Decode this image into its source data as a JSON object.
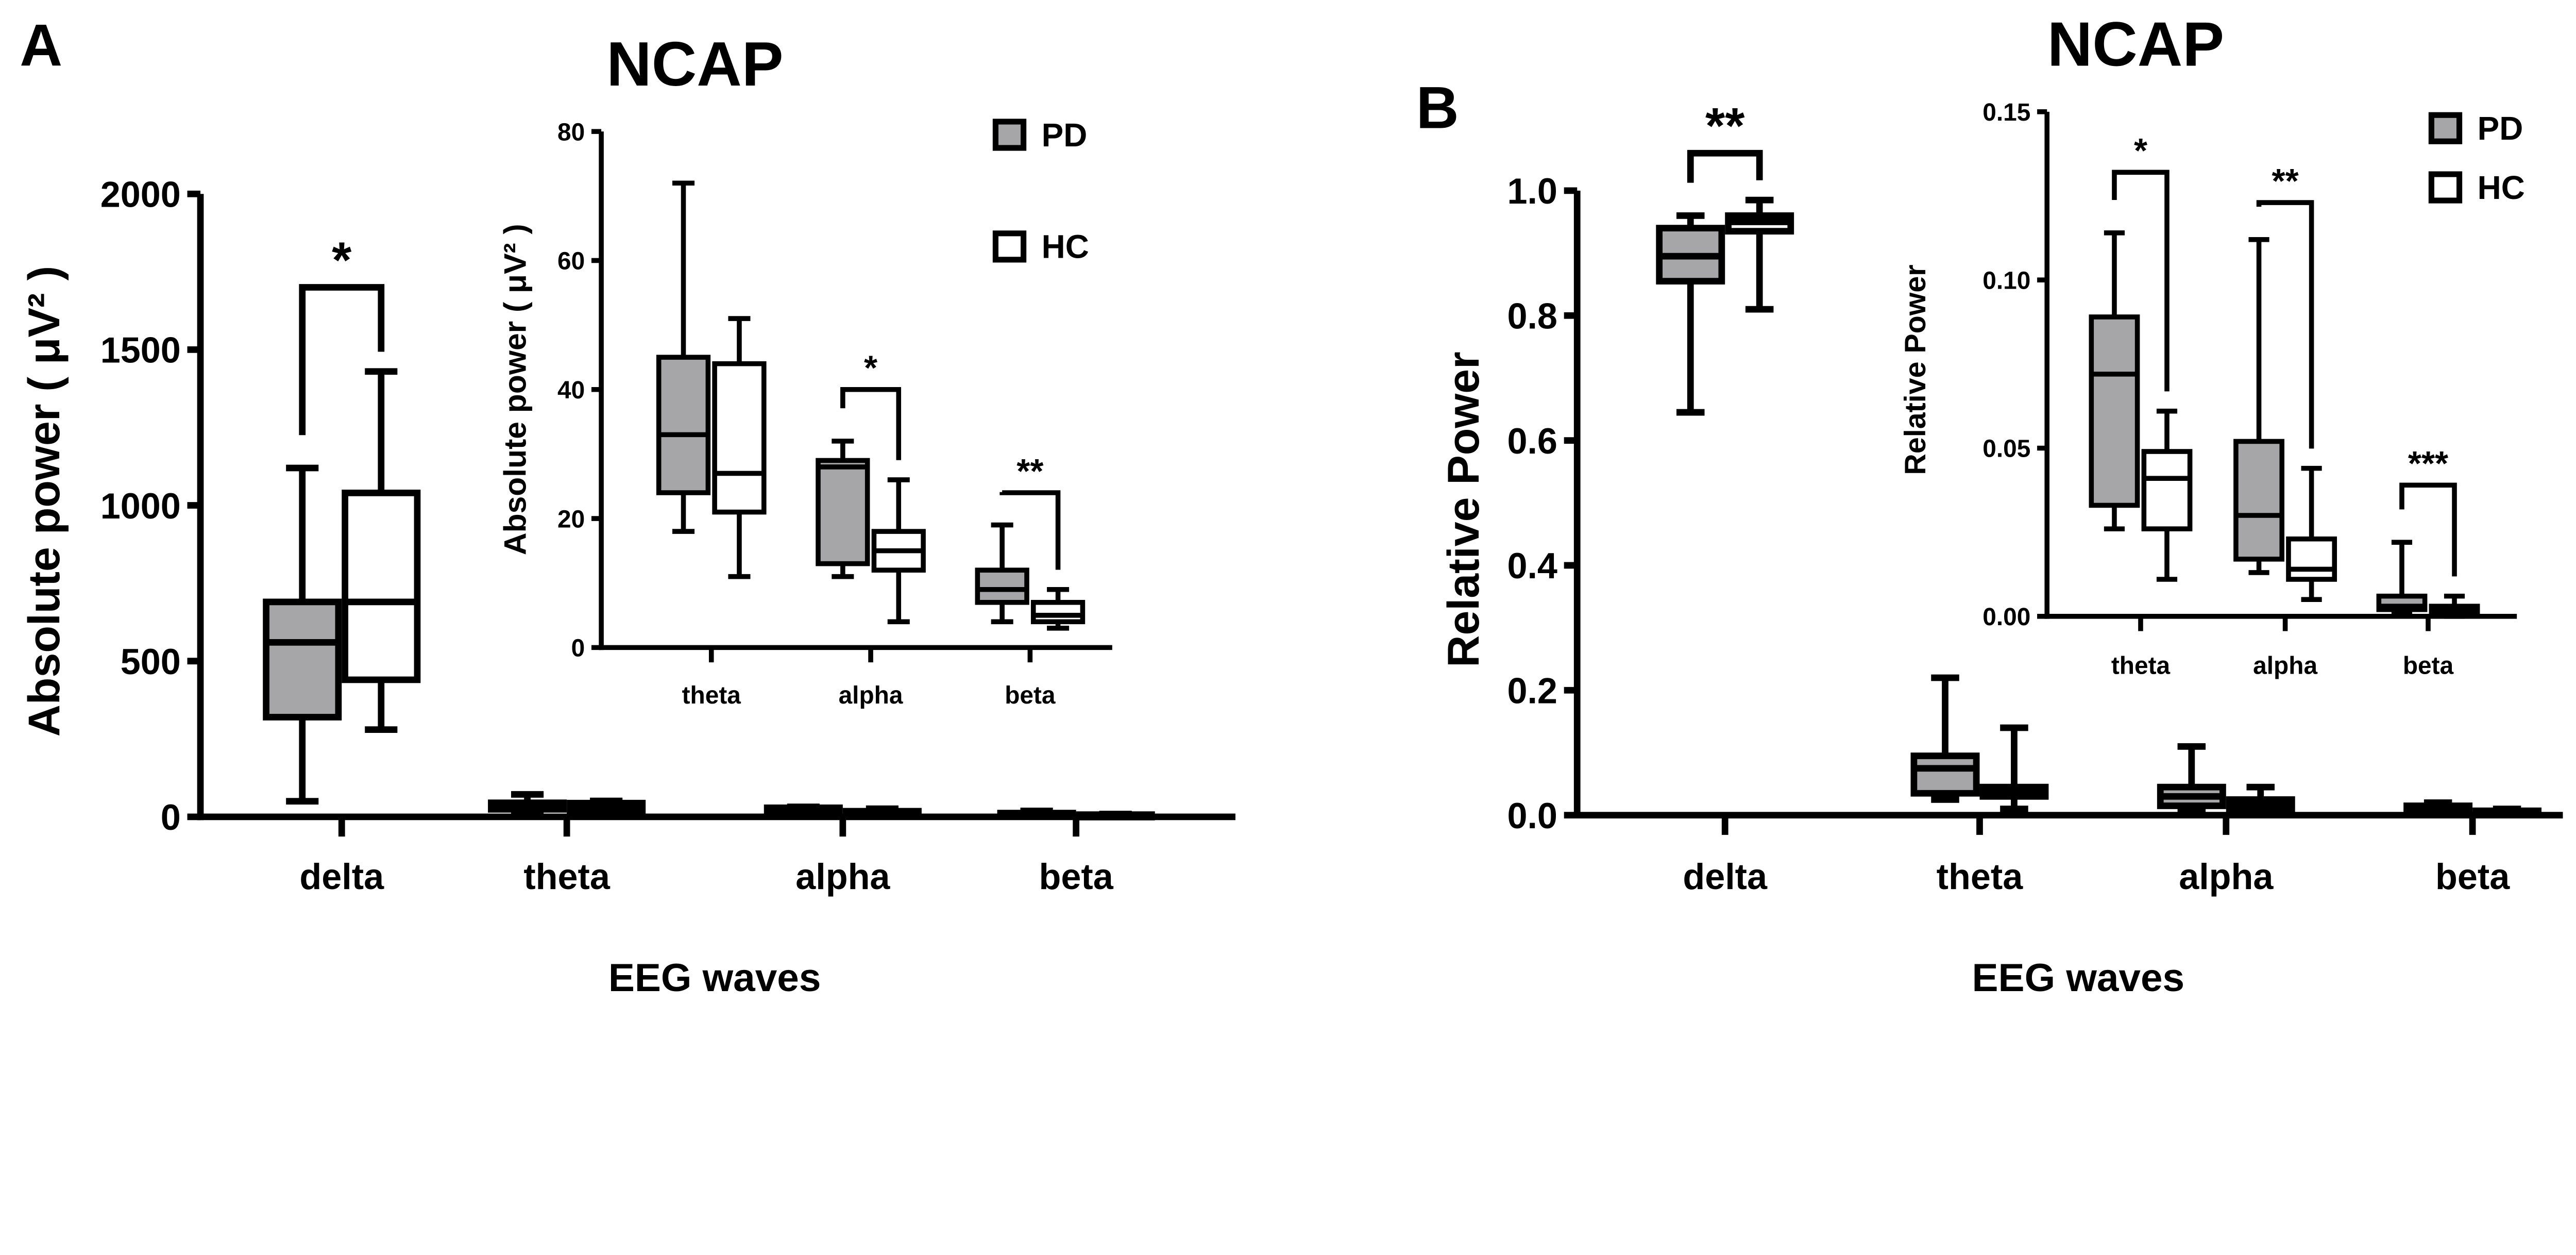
{
  "colors": {
    "pd_fill": "#a6a6a8",
    "hc_fill": "#ffffff",
    "stroke": "#000000"
  },
  "legend": [
    {
      "name": "PD",
      "color": "#a6a6a8"
    },
    {
      "name": "HC",
      "color": "#ffffff"
    }
  ],
  "chart_data": [
    {
      "id": "A-main",
      "panel_letter": "A",
      "title": "NCAP",
      "type": "box",
      "xlabel": "EEG waves",
      "ylabel": "Absolute power ( μV² )",
      "ylim": [
        0,
        2000
      ],
      "yticks": [
        0,
        500,
        1000,
        1500,
        2000
      ],
      "categories": [
        "delta",
        "theta",
        "alpha",
        "beta"
      ],
      "series": [
        {
          "name": "PD",
          "boxes": [
            [
              50,
              320,
              560,
              690,
              1120
            ],
            [
              18,
              24,
              33,
              45,
              72
            ],
            [
              11,
              13,
              28,
              29,
              32
            ],
            [
              4,
              7,
              9,
              12,
              19
            ]
          ]
        },
        {
          "name": "HC",
          "boxes": [
            [
              280,
              440,
              690,
              1040,
              1430
            ],
            [
              11,
              21,
              27,
              44,
              51
            ],
            [
              4,
              12,
              15,
              18,
              26
            ],
            [
              3,
              4,
              5,
              7,
              9
            ]
          ]
        }
      ],
      "significance": [
        {
          "category": "delta",
          "y": 1700,
          "label": "*"
        }
      ]
    },
    {
      "id": "A-inset",
      "type": "box",
      "ylabel": "Absolute power ( μV² )",
      "ylim": [
        0,
        80
      ],
      "yticks": [
        0,
        20,
        40,
        60,
        80
      ],
      "categories": [
        "theta",
        "alpha",
        "beta"
      ],
      "series": [
        {
          "name": "PD",
          "boxes": [
            [
              18,
              24,
              33,
              45,
              72
            ],
            [
              11,
              13,
              28,
              29,
              32
            ],
            [
              4,
              7,
              9,
              12,
              19
            ]
          ]
        },
        {
          "name": "HC",
          "boxes": [
            [
              11,
              21,
              27,
              44,
              51
            ],
            [
              4,
              12,
              15,
              18,
              26
            ],
            [
              3,
              4,
              5,
              7,
              9
            ]
          ]
        }
      ],
      "significance": [
        {
          "category": "alpha",
          "y": 40,
          "label": "*"
        },
        {
          "category": "beta",
          "y": 24,
          "label": "**"
        }
      ]
    },
    {
      "id": "B-main",
      "panel_letter": "B",
      "title": "NCAP",
      "type": "box",
      "xlabel": "EEG waves",
      "ylabel": "Relative Power",
      "ylim": [
        0,
        1.0
      ],
      "yticks": [
        "0.0",
        "0.2",
        "0.4",
        "0.6",
        "0.8",
        "1.0"
      ],
      "categories": [
        "delta",
        "theta",
        "alpha",
        "beta"
      ],
      "series": [
        {
          "name": "PD",
          "boxes": [
            [
              0.645,
              0.855,
              0.895,
              0.94,
              0.96
            ],
            [
              0.025,
              0.035,
              0.075,
              0.095,
              0.22
            ],
            [
              0.005,
              0.015,
              0.03,
              0.045,
              0.11
            ],
            [
              0.002,
              0.005,
              0.01,
              0.015,
              0.02
            ]
          ]
        },
        {
          "name": "HC",
          "boxes": [
            [
              0.81,
              0.935,
              0.95,
              0.96,
              0.985
            ],
            [
              0.01,
              0.03,
              0.04,
              0.045,
              0.14
            ],
            [
              0.002,
              0.01,
              0.015,
              0.025,
              0.045
            ],
            [
              0.001,
              0.003,
              0.005,
              0.007,
              0.01
            ]
          ]
        }
      ],
      "significance": [
        {
          "category": "delta",
          "y": 1.06,
          "label": "**"
        }
      ]
    },
    {
      "id": "B-inset",
      "type": "box",
      "ylabel": "Relative Power",
      "ylim": [
        0,
        0.15
      ],
      "yticks": [
        "0.00",
        "0.05",
        "0.10",
        "0.15"
      ],
      "categories": [
        "theta",
        "alpha",
        "beta"
      ],
      "series": [
        {
          "name": "PD",
          "boxes": [
            [
              0.026,
              0.033,
              0.072,
              0.089,
              0.114
            ],
            [
              0.013,
              0.017,
              0.03,
              0.052,
              0.112
            ],
            [
              0.001,
              0.002,
              0.003,
              0.006,
              0.022
            ]
          ]
        },
        {
          "name": "HC",
          "boxes": [
            [
              0.011,
              0.026,
              0.041,
              0.049,
              0.061
            ],
            [
              0.005,
              0.011,
              0.014,
              0.023,
              0.044
            ],
            [
              0.0,
              0.001,
              0.002,
              0.003,
              0.006
            ]
          ]
        }
      ],
      "significance": [
        {
          "category": "theta",
          "y": 0.132,
          "label": "*"
        },
        {
          "category": "alpha",
          "y": 0.123,
          "label": "**"
        },
        {
          "category": "beta",
          "y": 0.039,
          "label": "***"
        }
      ]
    }
  ]
}
